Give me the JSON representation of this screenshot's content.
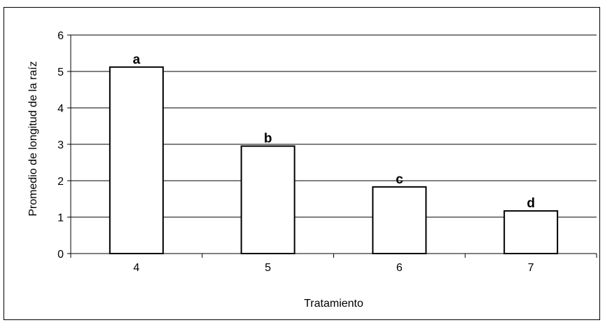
{
  "chart_data": {
    "type": "bar",
    "categories": [
      "4",
      "5",
      "6",
      "7"
    ],
    "values": [
      5.12,
      2.95,
      1.83,
      1.17
    ],
    "data_labels": [
      "a",
      "b",
      "c",
      "d"
    ],
    "title": "",
    "xlabel": "Tratamiento",
    "ylabel": "Promedio de longitud de la raíz",
    "ylim": [
      0,
      6
    ],
    "yticks": [
      0,
      1,
      2,
      3,
      4,
      5,
      6
    ],
    "grid": true,
    "legend": "none",
    "colors": {
      "bar_fill": "#ffffff",
      "bar_stroke": "#000000",
      "grid": "#000000"
    }
  }
}
